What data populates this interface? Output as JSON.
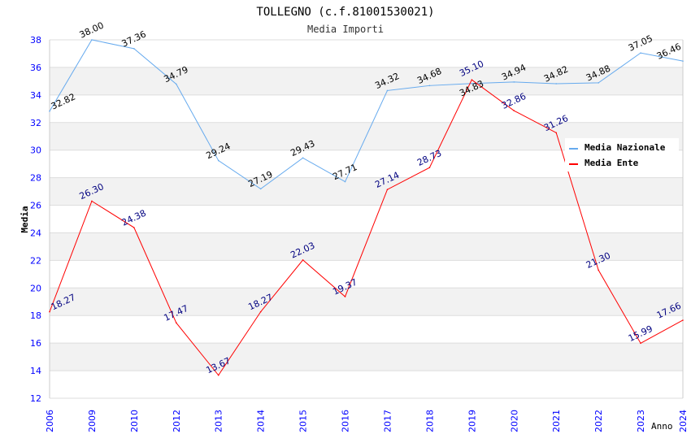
{
  "chart_data": {
    "type": "line",
    "title": "TOLLEGNO (c.f.81001530021)",
    "subtitle": "Media Importi",
    "xlabel": "Anno",
    "ylabel": "Media",
    "ylim": [
      12,
      38
    ],
    "yticks": [
      12,
      14,
      16,
      18,
      20,
      22,
      24,
      26,
      28,
      30,
      32,
      34,
      36,
      38
    ],
    "categories": [
      "2006",
      "2009",
      "2010",
      "2012",
      "2013",
      "2014",
      "2015",
      "2016",
      "2017",
      "2018",
      "2019",
      "2020",
      "2021",
      "2022",
      "2023",
      "2024"
    ],
    "legend_position": "top-right",
    "series": [
      {
        "name": "Media Nazionale",
        "color": "#66aaee",
        "label_color": "#000000",
        "values": [
          32.82,
          38.0,
          37.36,
          34.79,
          29.24,
          27.19,
          29.43,
          27.71,
          34.32,
          34.68,
          34.83,
          34.94,
          34.82,
          34.88,
          37.05,
          36.46
        ]
      },
      {
        "name": "Media Ente",
        "color": "#ff0000",
        "label_color": "#000080",
        "values": [
          18.27,
          26.3,
          24.38,
          17.47,
          13.67,
          18.27,
          22.03,
          19.37,
          27.14,
          28.73,
          35.1,
          32.86,
          31.26,
          21.3,
          15.99,
          17.66
        ]
      }
    ]
  }
}
